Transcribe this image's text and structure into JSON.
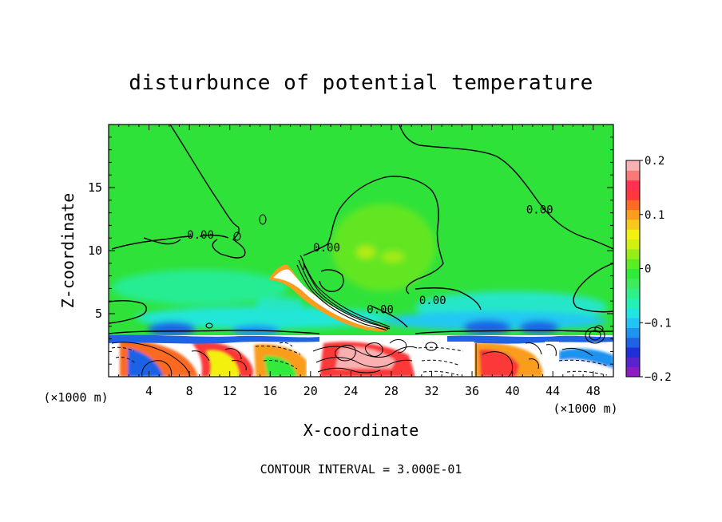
{
  "chart_data": {
    "type": "heatmap",
    "title": "disturbunce of potential temperature",
    "xlabel": "X-coordinate",
    "ylabel": "Z-coordinate",
    "x_unit_left": "(×1000 m)",
    "x_unit_right": "(×1000 m)",
    "xlim": [
      0,
      50
    ],
    "ylim": [
      0,
      20
    ],
    "x_ticks": [
      4,
      8,
      12,
      16,
      20,
      24,
      28,
      32,
      36,
      40,
      44,
      48
    ],
    "x_tick_labels": [
      "4",
      "8",
      "12",
      "16",
      "20",
      "24",
      "28",
      "32",
      "36",
      "40",
      "44",
      "48"
    ],
    "y_ticks": [
      5,
      10,
      15
    ],
    "y_tick_labels": [
      "5",
      "10",
      "15"
    ],
    "contour_labels": [
      {
        "text": "0.00",
        "x": 9.1,
        "z": 11.2
      },
      {
        "text": "0.00",
        "x": 21.6,
        "z": 10.2
      },
      {
        "text": "0.00",
        "x": 42.7,
        "z": 13.2
      },
      {
        "text": "0.00",
        "x": 26.9,
        "z": 5.3
      },
      {
        "text": "0.00",
        "x": 32.1,
        "z": 6.0
      }
    ],
    "colorbar": {
      "range": [
        -0.2,
        0.2
      ],
      "ticks": [
        0.2,
        0.1,
        0,
        -0.1,
        -0.2
      ],
      "tick_labels": [
        "0.2",
        "0.1",
        "0",
        "−0.1",
        "−0.2"
      ],
      "colors": [
        "#8f1bc4",
        "#5b22d0",
        "#2030d8",
        "#1f62e6",
        "#1f93f0",
        "#22c4f4",
        "#1fe6e2",
        "#22f0b4",
        "#2ef08a",
        "#3cec5a",
        "#30ea3a",
        "#5aee22",
        "#96ee16",
        "#d2f010",
        "#f4f010",
        "#f8c81a",
        "#fa9c1e",
        "#fc6a24",
        "#fc3838",
        "#ff3050",
        "#fa7878",
        "#f8b0b0"
      ]
    },
    "footer": "CONTOUR INTERVAL = 3.000E-01"
  }
}
